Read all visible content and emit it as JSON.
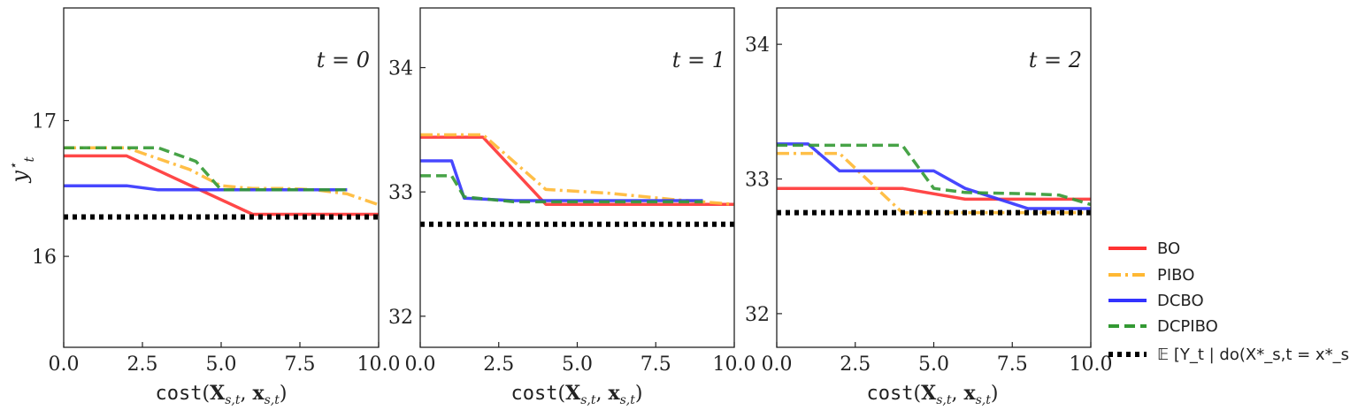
{
  "ylabel": "y*_t",
  "ylabel_main": "y",
  "ylabel_sup": "⋆",
  "ylabel_sub": "t",
  "xlabel": "cost(X_s,t, x_s,t)",
  "xlabel_func": "cost",
  "xlabel_open": "(",
  "xlabel_X": "X",
  "xlabel_sub1": "s,t",
  "xlabel_comma": ", ",
  "xlabel_x": "x",
  "xlabel_sub2": "s,t",
  "xlabel_close": ")",
  "legend": [
    {
      "label": "BO",
      "color": "#ff3333",
      "dash": "solid"
    },
    {
      "label": "PIBO",
      "color": "#ffb833",
      "dash": "dashdot"
    },
    {
      "label": "DCBO",
      "color": "#3333ff",
      "dash": "solid"
    },
    {
      "label": "DCPIBO",
      "color": "#339933",
      "dash": "dashed"
    },
    {
      "label": "𝔼 [Y_t | do(X*_s,t = x*_s,t)]",
      "color": "#000000",
      "dash": "dotted"
    }
  ],
  "chart_data": [
    {
      "type": "line",
      "title": "t = 0",
      "xlim": [
        0,
        10
      ],
      "ylim": [
        15.33,
        17.83
      ],
      "xticks": [
        "0.0",
        "2.5",
        "5.0",
        "7.5",
        "10.0"
      ],
      "yticks": [
        16,
        17
      ],
      "ytick_labels": [
        "16",
        "17"
      ],
      "series": [
        {
          "name": "BO",
          "x": [
            0,
            2,
            6,
            10
          ],
          "y": [
            16.74,
            16.74,
            16.31,
            16.31
          ]
        },
        {
          "name": "PIBO",
          "x": [
            0,
            2,
            3,
            4,
            5,
            6,
            7,
            8,
            9,
            10
          ],
          "y": [
            16.8,
            16.8,
            16.72,
            16.64,
            16.52,
            16.5,
            16.5,
            16.49,
            16.46,
            16.38
          ]
        },
        {
          "name": "DCBO",
          "x": [
            0,
            2,
            3,
            5,
            9
          ],
          "y": [
            16.52,
            16.52,
            16.49,
            16.49,
            16.49
          ]
        },
        {
          "name": "DCPIBO",
          "x": [
            0,
            3,
            4.2,
            5,
            9
          ],
          "y": [
            16.8,
            16.8,
            16.7,
            16.49,
            16.49
          ]
        },
        {
          "name": "E[Y_t | do(X*_s,t = x*_s,t)]",
          "x": [
            0,
            10
          ],
          "y": [
            16.29,
            16.29
          ]
        }
      ]
    },
    {
      "type": "line",
      "title": "t = 1",
      "xlim": [
        0,
        10
      ],
      "ylim": [
        31.75,
        34.48
      ],
      "xticks": [
        "0.0",
        "2.5",
        "5.0",
        "7.5",
        "10.0"
      ],
      "yticks": [
        32,
        33,
        34
      ],
      "ytick_labels": [
        "32",
        "33",
        "34"
      ],
      "series": [
        {
          "name": "BO",
          "x": [
            0,
            2,
            4,
            10
          ],
          "y": [
            33.44,
            33.44,
            32.9,
            32.9
          ]
        },
        {
          "name": "PIBO",
          "x": [
            0,
            2,
            4,
            6,
            8,
            10
          ],
          "y": [
            33.46,
            33.46,
            33.02,
            32.99,
            32.94,
            32.9
          ]
        },
        {
          "name": "DCBO",
          "x": [
            0,
            1,
            1.4,
            3,
            9
          ],
          "y": [
            33.25,
            33.25,
            32.95,
            32.93,
            32.93
          ]
        },
        {
          "name": "DCPIBO",
          "x": [
            0,
            1,
            1.4,
            3,
            9
          ],
          "y": [
            33.13,
            33.13,
            32.96,
            32.92,
            32.92
          ]
        },
        {
          "name": "E[Y_t | do(X*_s,t = x*_s,t)]",
          "x": [
            0,
            10
          ],
          "y": [
            32.74,
            32.74
          ]
        }
      ]
    },
    {
      "type": "line",
      "title": "t = 2",
      "xlim": [
        0,
        10
      ],
      "ylim": [
        31.75,
        34.27
      ],
      "xticks": [
        "0.0",
        "2.5",
        "5.0",
        "7.5",
        "10.0"
      ],
      "yticks": [
        32,
        33,
        34
      ],
      "ytick_labels": [
        "32",
        "33",
        "34"
      ],
      "series": [
        {
          "name": "BO",
          "x": [
            0,
            4,
            6,
            10
          ],
          "y": [
            32.93,
            32.93,
            32.85,
            32.85
          ]
        },
        {
          "name": "PIBO",
          "x": [
            0,
            2,
            4,
            10
          ],
          "y": [
            33.19,
            33.19,
            32.75,
            32.75
          ]
        },
        {
          "name": "DCBO",
          "x": [
            0,
            1,
            2,
            5,
            6,
            8,
            10
          ],
          "y": [
            33.26,
            33.26,
            33.06,
            33.06,
            32.93,
            32.78,
            32.78
          ]
        },
        {
          "name": "DCPIBO",
          "x": [
            0,
            4,
            5,
            6,
            8,
            9,
            10
          ],
          "y": [
            33.25,
            33.25,
            32.93,
            32.9,
            32.89,
            32.88,
            32.81
          ]
        },
        {
          "name": "E[Y_t | do(X*_s,t = x*_s,t)]",
          "x": [
            0,
            10
          ],
          "y": [
            32.75,
            32.75
          ]
        }
      ]
    }
  ]
}
